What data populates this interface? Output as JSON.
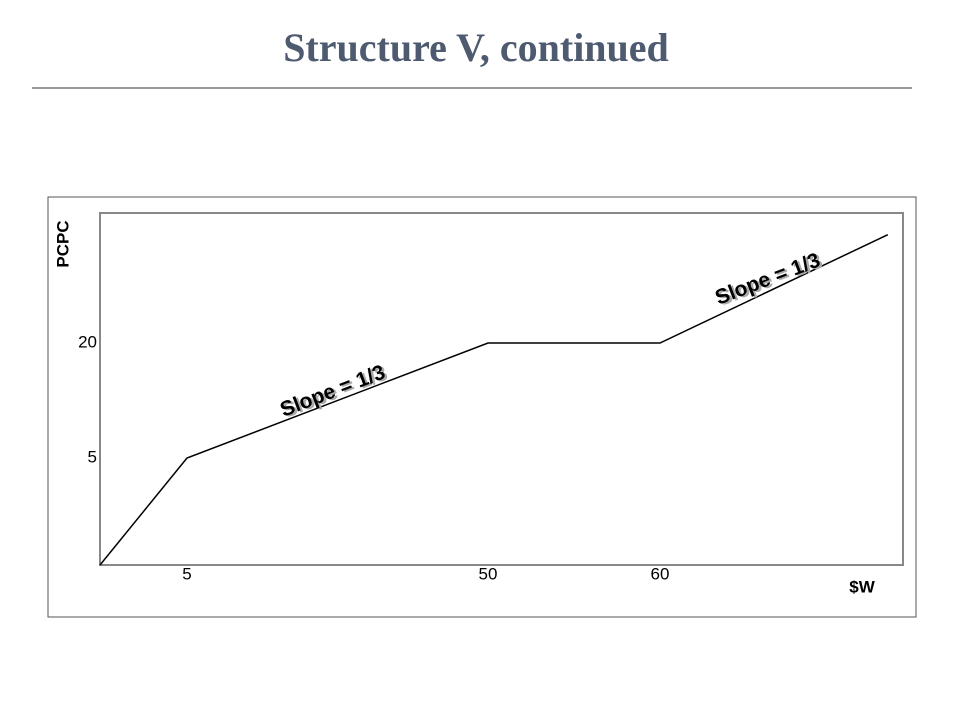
{
  "chart_data": {
    "type": "line",
    "title": "Structure V, continued",
    "x": [
      0,
      5,
      50,
      60,
      90
    ],
    "values": [
      0,
      5,
      20,
      20,
      30
    ],
    "color": "#000000",
    "xlim": [
      0,
      92
    ],
    "xticks": [
      5,
      50,
      60
    ],
    "ylim": [
      0,
      32
    ],
    "yticks": [
      5,
      20
    ],
    "xlabel": "$W",
    "ylabel": "PCPC",
    "annotations": [
      "Slope = 1/3",
      "Slope = 1/3"
    ]
  }
}
